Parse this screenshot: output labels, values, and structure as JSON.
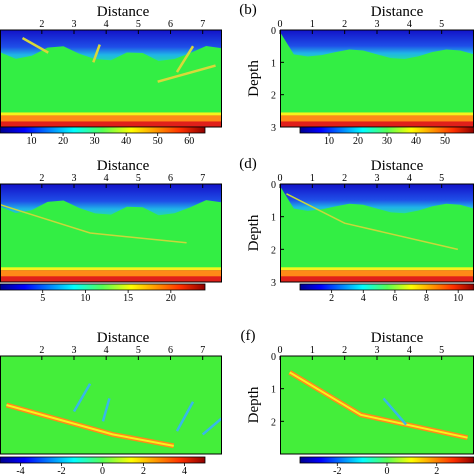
{
  "figure": {
    "panels": [
      {
        "id": "a",
        "letter": "",
        "side": "left",
        "title": "Distance",
        "xticks": [
          "2",
          "3",
          "4",
          "5",
          "6",
          "7"
        ],
        "yticks": [],
        "ylabel": "",
        "colorbar": {
          "ticks": [
            "10",
            "20",
            "30",
            "40",
            "50",
            "60"
          ],
          "range": [
            0,
            65
          ]
        },
        "kind": "model",
        "layer_boundary": true,
        "features": [
          {
            "type": "dipping",
            "points": [
              [
                1.4,
                0.25
              ],
              [
                2.2,
                0.7
              ]
            ]
          },
          {
            "type": "dipping",
            "points": [
              [
                3.8,
                0.45
              ],
              [
                3.6,
                1.0
              ]
            ]
          },
          {
            "type": "dipping",
            "points": [
              [
                6.7,
                0.5
              ],
              [
                6.2,
                1.3
              ]
            ]
          },
          {
            "type": "dipping",
            "points": [
              [
                7.4,
                1.1
              ],
              [
                5.6,
                1.6
              ]
            ]
          }
        ]
      },
      {
        "id": "b",
        "letter": "(b)",
        "side": "right",
        "title": "Distance",
        "xticks": [
          "0",
          "1",
          "2",
          "3",
          "4",
          "5"
        ],
        "yticks": [
          "0",
          "1",
          "2",
          "3"
        ],
        "ylabel": "Depth",
        "colorbar": {
          "ticks": [
            "10",
            "20",
            "30",
            "40",
            "50"
          ],
          "range": [
            0,
            60
          ]
        },
        "kind": "model",
        "layer_boundary": true,
        "features": []
      },
      {
        "id": "c",
        "letter": "",
        "side": "left",
        "title": "Distance",
        "xticks": [
          "2",
          "3",
          "4",
          "5",
          "6",
          "7"
        ],
        "yticks": [],
        "ylabel": "",
        "colorbar": {
          "ticks": [
            "5",
            "10",
            "15",
            "20"
          ],
          "range": [
            0,
            24
          ]
        },
        "kind": "model",
        "layer_boundary": true,
        "features": [
          {
            "type": "curve",
            "points": [
              [
                0.6,
                0.6
              ],
              [
                3.5,
                1.5
              ],
              [
                6.5,
                1.8
              ]
            ]
          }
        ]
      },
      {
        "id": "d",
        "letter": "(d)",
        "side": "right",
        "title": "Distance",
        "xticks": [
          "0",
          "1",
          "2",
          "3",
          "4",
          "5"
        ],
        "yticks": [
          "0",
          "1",
          "2",
          "3"
        ],
        "ylabel": "Depth",
        "colorbar": {
          "ticks": [
            "2",
            "4",
            "6",
            "8",
            "10"
          ],
          "range": [
            0,
            11
          ]
        },
        "kind": "model",
        "layer_boundary": true,
        "features": [
          {
            "type": "curve",
            "points": [
              [
                0.2,
                0.3
              ],
              [
                2,
                1.2
              ],
              [
                5.5,
                2.0
              ]
            ]
          }
        ]
      },
      {
        "id": "e",
        "letter": "",
        "side": "left",
        "title": "Distance",
        "xticks": [
          "2",
          "3",
          "4",
          "5",
          "6",
          "7"
        ],
        "yticks": [],
        "ylabel": "",
        "colorbar": {
          "ticks": [
            "-4",
            "-2",
            "0",
            "2",
            "4"
          ],
          "range": [
            -5,
            5
          ]
        },
        "kind": "migration",
        "layer_boundary": false,
        "features": [
          {
            "type": "fault",
            "points": [
              [
                0.9,
                1.5
              ],
              [
                4.2,
                2.4
              ],
              [
                6.1,
                2.75
              ]
            ]
          },
          {
            "type": "dipping",
            "points": [
              [
                3.5,
                0.85
              ],
              [
                3.0,
                1.7
              ]
            ]
          },
          {
            "type": "dipping",
            "points": [
              [
                4.1,
                1.3
              ],
              [
                3.9,
                2.0
              ]
            ]
          },
          {
            "type": "dipping",
            "points": [
              [
                6.7,
                1.4
              ],
              [
                6.2,
                2.3
              ]
            ]
          },
          {
            "type": "dipping",
            "points": [
              [
                7.6,
                1.9
              ],
              [
                7.0,
                2.4
              ]
            ]
          }
        ]
      },
      {
        "id": "f",
        "letter": "(f)",
        "side": "right",
        "title": "Distance",
        "xticks": [
          "0",
          "1",
          "2",
          "3",
          "4",
          "5"
        ],
        "yticks": [
          "0",
          "1",
          "2"
        ],
        "ylabel": "Depth",
        "colorbar": {
          "ticks": [
            "-2",
            "0",
            "2"
          ],
          "range": [
            -3.5,
            3.5
          ]
        },
        "kind": "migration",
        "layer_boundary": false,
        "features": [
          {
            "type": "fault",
            "points": [
              [
                0.3,
                0.5
              ],
              [
                2.5,
                1.8
              ],
              [
                5.8,
                2.5
              ]
            ]
          },
          {
            "type": "dipping",
            "points": [
              [
                3.2,
                1.3
              ],
              [
                3.9,
                2.1
              ]
            ]
          }
        ]
      }
    ]
  },
  "colors": {
    "deep_blue": "#1a1ad8",
    "blue": "#1e6cf2",
    "cyan": "#1ee0e0",
    "green": "#33ee44",
    "yellow": "#f6f31c",
    "orange": "#ff8a18",
    "red": "#e0201a",
    "bright_green": "#44ee3a"
  }
}
